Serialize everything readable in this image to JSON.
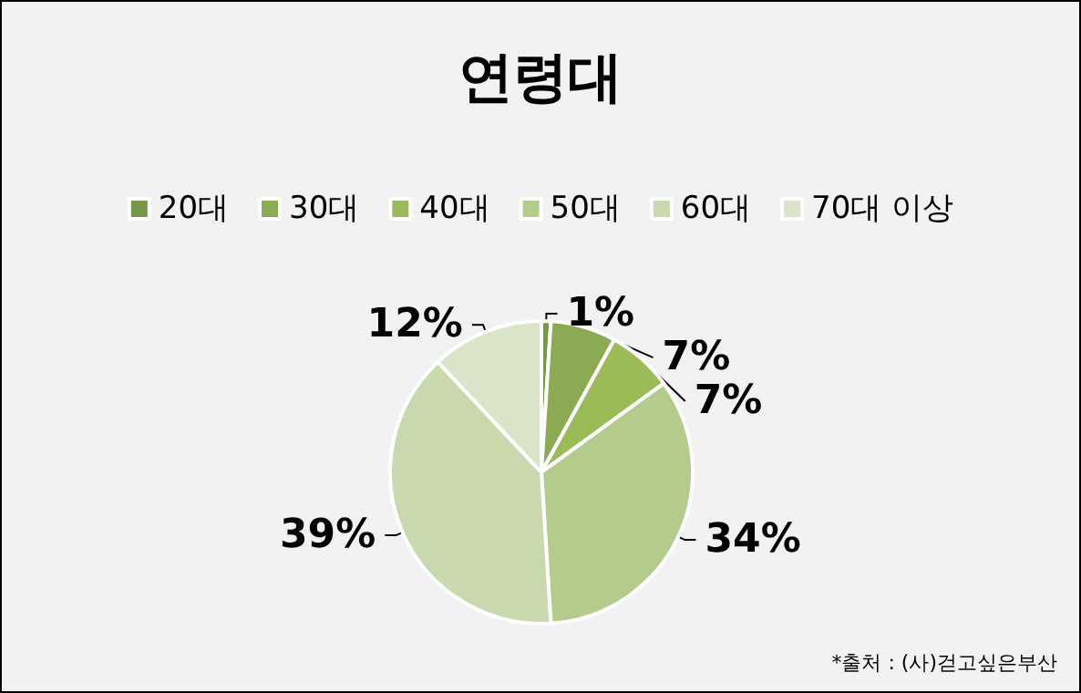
{
  "chart_data": {
    "type": "pie",
    "title": "연령대",
    "categories": [
      "20대",
      "30대",
      "40대",
      "50대",
      "60대",
      "70대 이상"
    ],
    "values": [
      1,
      7,
      7,
      34,
      39,
      12
    ],
    "value_labels": [
      "1%",
      "7%",
      "7%",
      "34%",
      "39%",
      "12%"
    ],
    "colors": [
      "#76964a",
      "#8aab52",
      "#9bbb59",
      "#b3cc8c",
      "#c8d9ae",
      "#dae4c9"
    ],
    "legend": "top",
    "annotations": [
      "*출처 : (사)걷고싶은부산"
    ]
  }
}
